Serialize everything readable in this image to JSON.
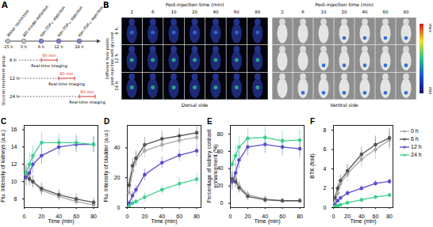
{
  "schematic": {
    "label": "A",
    "timeline": [
      {
        "time": "-15 h",
        "event": "Water restriction"
      },
      {
        "time": "0 h",
        "event": "AKI model initiation"
      },
      {
        "time": "6 h",
        "event": "Kim-TDF₁₇ injection"
      },
      {
        "time": "12 h",
        "event": "Kim-TDF₁₇ injection"
      },
      {
        "time": "24 h",
        "event": "Kim-TDF₁₇ injection"
      }
    ],
    "group_label": "Glycerol treatment group",
    "rows": [
      {
        "label": "6 h",
        "duration": "80 min",
        "text": "Real-time imaging"
      },
      {
        "label": "12 h",
        "duration": "80 min",
        "text": "Real-time imaging"
      },
      {
        "label": "24 h",
        "duration": "80 min",
        "text": "Real-time imaging"
      }
    ]
  },
  "imaging": {
    "label": "B",
    "column_title": "Post-injection time (min)",
    "times": [
      "2",
      "6",
      "10",
      "20",
      "40",
      "60",
      "80"
    ],
    "row_title": [
      "Different time points",
      "post-injection with glycerol"
    ],
    "rows": [
      "6 h",
      "12 h",
      "24 h"
    ],
    "views": [
      "Dorsal side",
      "Ventral side"
    ],
    "colorbar": [
      "max",
      "min"
    ]
  },
  "chart_data": [
    {
      "label": "C",
      "type": "line",
      "x_label": "Time (min)",
      "y_label": "Flu. Intensity of kidneys (a.u.)",
      "x": [
        2,
        6,
        10,
        20,
        40,
        60,
        80
      ],
      "xlim": [
        0,
        85
      ],
      "xticks": [
        0,
        20,
        40,
        60,
        80
      ],
      "ylim": [
        7,
        16.5
      ],
      "yticks": [
        8,
        10,
        12,
        14,
        16
      ],
      "marker": "circle",
      "series": [
        {
          "name": "0 h",
          "color": "#a8a8a8",
          "values": [
            10.8,
            10.5,
            10.0,
            9.0,
            8.3,
            7.7,
            7.3
          ],
          "errors": [
            0.8,
            0.7,
            0.7,
            0.6,
            0.6,
            0.5,
            0.5
          ]
        },
        {
          "name": "6 h",
          "color": "#555555",
          "values": [
            11.0,
            10.3,
            10.0,
            9.2,
            8.5,
            8.0,
            7.6
          ],
          "errors": [
            0.9,
            0.8,
            0.7,
            0.7,
            0.6,
            0.6,
            0.5
          ]
        },
        {
          "name": "12 h",
          "color": "#5a4fcf",
          "values": [
            10.5,
            11.0,
            12.0,
            13.0,
            14.0,
            14.3,
            14.3
          ],
          "errors": [
            1.0,
            1.0,
            1.0,
            1.0,
            1.0,
            0.9,
            0.9
          ]
        },
        {
          "name": "24 h",
          "color": "#3ecf8e",
          "values": [
            11.0,
            12.0,
            13.0,
            14.5,
            14.5,
            14.5,
            14.3
          ],
          "errors": [
            1.5,
            1.3,
            1.2,
            1.2,
            1.0,
            1.0,
            1.0
          ]
        }
      ]
    },
    {
      "label": "D",
      "type": "line",
      "x_label": "Time (min)",
      "y_label": "Flu. Intensity of bladder (a.u.)",
      "x": [
        2,
        6,
        10,
        20,
        40,
        60,
        80
      ],
      "xlim": [
        0,
        85
      ],
      "xticks": [
        0,
        20,
        40,
        60,
        80
      ],
      "ylim": [
        0,
        55
      ],
      "yticks": [
        0,
        20,
        40
      ],
      "marker": "circle",
      "series": [
        {
          "name": "0 h",
          "color": "#a8a8a8",
          "values": [
            10,
            25,
            32,
            38,
            42,
            45,
            47
          ],
          "errors": [
            4,
            5,
            5,
            5,
            5,
            5,
            5
          ]
        },
        {
          "name": "6 h",
          "color": "#555555",
          "values": [
            15,
            28,
            33,
            42,
            46,
            48,
            50
          ],
          "errors": [
            5,
            5,
            5,
            5,
            5,
            5,
            5
          ]
        },
        {
          "name": "12 h",
          "color": "#5a4fcf",
          "values": [
            3,
            8,
            12,
            22,
            30,
            35,
            38
          ],
          "errors": [
            2,
            3,
            3,
            4,
            4,
            4,
            4
          ]
        },
        {
          "name": "24 h",
          "color": "#3ecf8e",
          "values": [
            1,
            3,
            4,
            7,
            12,
            16,
            19
          ],
          "errors": [
            1,
            2,
            2,
            3,
            3,
            4,
            4
          ]
        }
      ]
    },
    {
      "label": "E",
      "type": "line",
      "x_label": "Time (min)",
      "y_label": "Percentage of kidney contrast enhancement (%)",
      "x": [
        2,
        6,
        10,
        20,
        40,
        60,
        80
      ],
      "xlim": [
        0,
        85
      ],
      "xticks": [
        0,
        20,
        40,
        60,
        80
      ],
      "ylim": [
        -5,
        90
      ],
      "yticks": [
        0,
        20,
        40,
        60,
        80
      ],
      "marker": "circle",
      "series": [
        {
          "name": "0 h",
          "color": "#a8a8a8",
          "values": [
            25,
            28,
            20,
            10,
            5,
            3,
            3
          ],
          "errors": [
            8,
            8,
            7,
            5,
            4,
            3,
            3
          ]
        },
        {
          "name": "6 h",
          "color": "#555555",
          "values": [
            28,
            25,
            18,
            8,
            4,
            3,
            3
          ],
          "errors": [
            8,
            7,
            6,
            5,
            4,
            3,
            3
          ]
        },
        {
          "name": "12 h",
          "color": "#5a4fcf",
          "values": [
            25,
            35,
            50,
            65,
            68,
            65,
            63
          ],
          "errors": [
            10,
            10,
            10,
            10,
            10,
            10,
            10
          ]
        },
        {
          "name": "24 h",
          "color": "#3ecf8e",
          "values": [
            45,
            55,
            65,
            75,
            76,
            72,
            73
          ],
          "errors": [
            12,
            12,
            12,
            12,
            12,
            12,
            12
          ]
        }
      ]
    },
    {
      "label": "F",
      "type": "line",
      "x_label": "Time (min)",
      "y_label": "BTK (fold)",
      "legend": "right",
      "x": [
        2,
        6,
        10,
        20,
        40,
        60,
        80
      ],
      "xlim": [
        0,
        85
      ],
      "xticks": [
        0,
        20,
        40,
        60,
        80
      ],
      "ylim": [
        0,
        8.5
      ],
      "yticks": [
        0,
        2,
        4,
        6,
        8
      ],
      "marker": "circle",
      "series": [
        {
          "name": "0 h",
          "color": "#a8a8a8",
          "values": [
            0.5,
            1.5,
            2.5,
            3.5,
            5.0,
            6.0,
            7.0
          ],
          "errors": [
            0.3,
            0.5,
            0.6,
            0.8,
            0.9,
            1.0,
            1.0
          ]
        },
        {
          "name": "6 h",
          "color": "#555555",
          "values": [
            1.0,
            2.0,
            2.8,
            3.8,
            5.5,
            6.5,
            7.2
          ],
          "errors": [
            0.3,
            0.5,
            0.6,
            0.7,
            0.8,
            0.9,
            1.0
          ]
        },
        {
          "name": "12 h",
          "color": "#5a4fcf",
          "values": [
            0.3,
            0.7,
            1.0,
            1.5,
            2.0,
            2.5,
            2.7
          ],
          "errors": [
            0.1,
            0.2,
            0.2,
            0.3,
            0.3,
            0.3,
            0.3
          ]
        },
        {
          "name": "24 h",
          "color": "#3ecf8e",
          "values": [
            0.1,
            0.2,
            0.3,
            0.5,
            0.8,
            1.1,
            1.3
          ],
          "errors": [
            0.1,
            0.1,
            0.1,
            0.1,
            0.2,
            0.2,
            0.2
          ]
        }
      ]
    }
  ]
}
